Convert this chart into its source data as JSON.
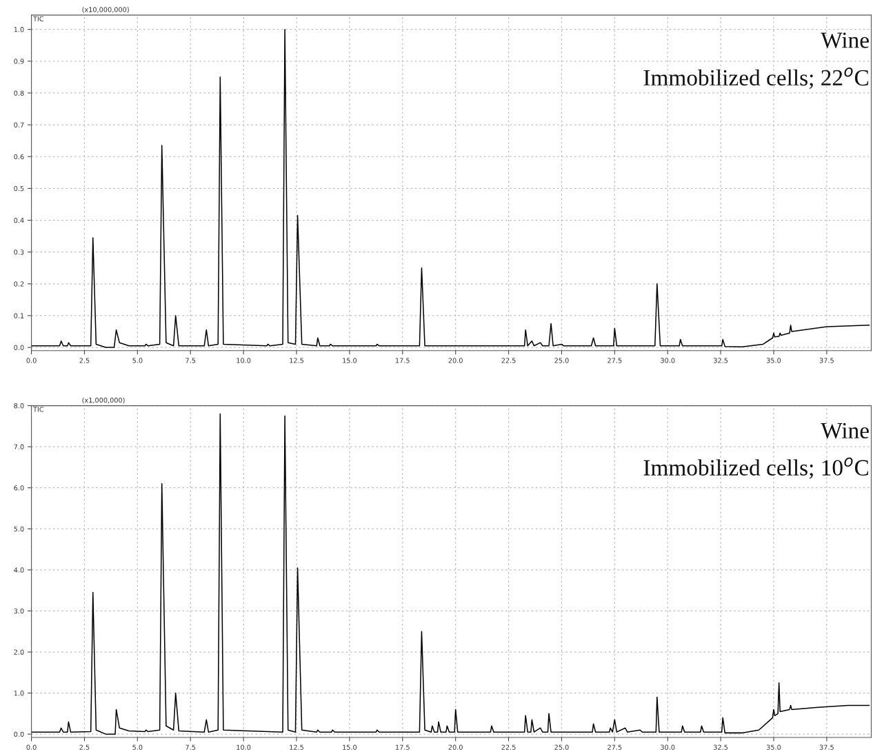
{
  "chart_data": [
    {
      "type": "line",
      "annotations": [
        "(x10,000,000)",
        "TIC",
        "Wine",
        "Immobilized cells; 22$^{o}$C"
      ],
      "x": [
        0.0,
        1.33,
        1.4,
        1.5,
        1.7,
        1.75,
        1.85,
        2.8,
        2.9,
        3.05,
        3.5,
        3.9,
        4.0,
        4.15,
        4.6,
        5.35,
        5.4,
        5.5,
        6.05,
        6.15,
        6.35,
        6.7,
        6.8,
        6.95,
        8.15,
        8.25,
        8.35,
        8.8,
        8.9,
        9.05,
        11.1,
        11.15,
        11.25,
        11.85,
        11.95,
        12.1,
        12.45,
        12.55,
        12.75,
        13.45,
        13.5,
        13.6,
        14.05,
        14.1,
        14.2,
        16.25,
        16.3,
        16.4,
        18.3,
        18.4,
        18.55,
        23.25,
        23.3,
        23.4,
        23.6,
        23.7,
        24.0,
        24.1,
        24.4,
        24.5,
        24.6,
        25.0,
        25.1,
        26.4,
        26.5,
        26.6,
        27.45,
        27.5,
        27.6,
        29.4,
        29.5,
        29.65,
        30.55,
        30.6,
        30.7,
        32.55,
        32.6,
        32.7,
        33.5,
        34.5,
        34.95,
        35.0,
        35.05,
        35.25,
        35.3,
        35.35,
        35.75,
        35.8,
        35.85,
        37.5,
        39.5
      ],
      "values": [
        0.005,
        0.005,
        0.02,
        0.005,
        0.005,
        0.015,
        0.005,
        0.005,
        0.345,
        0.01,
        0.0,
        0.0,
        0.055,
        0.015,
        0.005,
        0.005,
        0.01,
        0.005,
        0.01,
        0.635,
        0.015,
        0.005,
        0.1,
        0.005,
        0.005,
        0.055,
        0.005,
        0.01,
        0.85,
        0.01,
        0.005,
        0.01,
        0.005,
        0.01,
        1.0,
        0.015,
        0.01,
        0.415,
        0.01,
        0.005,
        0.03,
        0.005,
        0.005,
        0.01,
        0.005,
        0.005,
        0.01,
        0.005,
        0.005,
        0.25,
        0.005,
        0.005,
        0.055,
        0.005,
        0.02,
        0.005,
        0.015,
        0.005,
        0.005,
        0.075,
        0.005,
        0.01,
        0.005,
        0.005,
        0.03,
        0.005,
        0.005,
        0.06,
        0.005,
        0.005,
        0.2,
        0.005,
        0.005,
        0.025,
        0.005,
        0.005,
        0.025,
        0.003,
        0.002,
        0.01,
        0.03,
        0.045,
        0.033,
        0.035,
        0.045,
        0.038,
        0.045,
        0.07,
        0.05,
        0.065,
        0.07
      ],
      "color": "#000000",
      "xlim": [
        0,
        39.6
      ],
      "ylim": [
        -0.01,
        1.045
      ],
      "xticks": [
        {
          "value": 0,
          "label": "0.0"
        },
        2.5,
        {
          "value": 5,
          "label": "5.0"
        },
        7.5,
        {
          "value": 10,
          "label": "10.0"
        },
        12.5,
        {
          "value": 15,
          "label": "15.0"
        },
        17.5,
        {
          "value": 20,
          "label": "20.0"
        },
        22.5,
        {
          "value": 25,
          "label": "25.0"
        },
        27.5,
        {
          "value": 30,
          "label": "30.0"
        },
        32.5,
        {
          "value": 35,
          "label": "35.0"
        },
        37.5
      ],
      "yticks": [
        {
          "value": 0,
          "label": "0.0"
        },
        0.1,
        0.2,
        0.3,
        0.4,
        0.5,
        0.6,
        0.7,
        0.8,
        0.9,
        {
          "value": 1,
          "label": "1.0"
        }
      ],
      "grid": true,
      "marker": "none",
      "line_style": "solid"
    },
    {
      "type": "line",
      "annotations": [
        "(x1,000,000)",
        "TIC",
        "Wine",
        "Immobilized cells; 10$^{o}$C"
      ],
      "x": [
        0.0,
        1.33,
        1.4,
        1.5,
        1.7,
        1.75,
        1.85,
        2.8,
        2.9,
        3.05,
        3.5,
        3.95,
        4.0,
        4.15,
        4.6,
        5.35,
        5.4,
        5.5,
        6.05,
        6.15,
        6.35,
        6.7,
        6.8,
        6.95,
        8.15,
        8.25,
        8.35,
        8.8,
        8.9,
        9.05,
        11.85,
        11.95,
        12.1,
        12.45,
        12.55,
        12.75,
        13.45,
        13.5,
        13.6,
        14.15,
        14.2,
        14.3,
        16.25,
        16.3,
        16.4,
        18.3,
        18.4,
        18.55,
        18.85,
        18.9,
        19.0,
        19.15,
        19.2,
        19.3,
        19.55,
        19.6,
        19.7,
        19.95,
        20.0,
        20.1,
        21.65,
        21.7,
        21.8,
        23.25,
        23.3,
        23.4,
        23.55,
        23.6,
        23.7,
        24.0,
        24.1,
        24.35,
        24.4,
        24.5,
        26.45,
        26.5,
        26.6,
        27.25,
        27.3,
        27.4,
        27.5,
        27.6,
        28.0,
        28.1,
        28.7,
        28.8,
        29.45,
        29.5,
        29.6,
        30.65,
        30.7,
        30.8,
        31.55,
        31.6,
        31.7,
        32.55,
        32.6,
        32.7,
        33.5,
        34.3,
        34.95,
        35.0,
        35.05,
        35.2,
        35.25,
        35.3,
        35.75,
        35.8,
        35.85,
        37.0,
        38.5,
        39.5
      ],
      "values": [
        0.05,
        0.05,
        0.15,
        0.05,
        0.05,
        0.3,
        0.05,
        0.06,
        3.45,
        0.1,
        0.0,
        0.0,
        0.6,
        0.15,
        0.08,
        0.06,
        0.1,
        0.06,
        0.1,
        6.1,
        0.2,
        0.1,
        1.0,
        0.08,
        0.05,
        0.35,
        0.05,
        0.1,
        7.8,
        0.1,
        0.05,
        7.75,
        0.1,
        0.05,
        4.05,
        0.1,
        0.05,
        0.1,
        0.05,
        0.05,
        0.1,
        0.05,
        0.05,
        0.1,
        0.05,
        0.05,
        2.5,
        0.1,
        0.05,
        0.2,
        0.05,
        0.05,
        0.3,
        0.05,
        0.05,
        0.2,
        0.05,
        0.05,
        0.6,
        0.05,
        0.05,
        0.2,
        0.05,
        0.05,
        0.45,
        0.05,
        0.05,
        0.35,
        0.05,
        0.15,
        0.05,
        0.05,
        0.5,
        0.05,
        0.05,
        0.25,
        0.05,
        0.05,
        0.15,
        0.05,
        0.35,
        0.05,
        0.15,
        0.05,
        0.1,
        0.05,
        0.05,
        0.9,
        0.05,
        0.05,
        0.2,
        0.05,
        0.05,
        0.2,
        0.05,
        0.05,
        0.4,
        0.03,
        0.03,
        0.1,
        0.4,
        0.6,
        0.45,
        0.5,
        1.25,
        0.55,
        0.6,
        0.7,
        0.6,
        0.65,
        0.7,
        0.7
      ],
      "color": "#000000",
      "xlim": [
        0,
        39.6
      ],
      "ylim": [
        -0.08,
        8.0
      ],
      "xticks": [
        {
          "value": 0,
          "label": "0.0"
        },
        2.5,
        {
          "value": 5,
          "label": "5.0"
        },
        7.5,
        {
          "value": 10,
          "label": "10.0"
        },
        12.5,
        {
          "value": 15,
          "label": "15.0"
        },
        17.5,
        {
          "value": 20,
          "label": "20.0"
        },
        22.5,
        {
          "value": 25,
          "label": "25.0"
        },
        27.5,
        {
          "value": 30,
          "label": "30.0"
        },
        32.5,
        {
          "value": 35,
          "label": "35.0"
        },
        37.5
      ],
      "yticks": [
        {
          "value": 0,
          "label": "0.0"
        },
        {
          "value": 1,
          "label": "1.0"
        },
        {
          "value": 2,
          "label": "2.0"
        },
        {
          "value": 3,
          "label": "3.0"
        },
        {
          "value": 4,
          "label": "4.0"
        },
        {
          "value": 5,
          "label": "5.0"
        },
        {
          "value": 6,
          "label": "6.0"
        },
        {
          "value": 7,
          "label": "7.0"
        },
        {
          "value": 8,
          "label": "8.0"
        }
      ],
      "grid": true,
      "marker": "none",
      "line_style": "solid"
    }
  ]
}
